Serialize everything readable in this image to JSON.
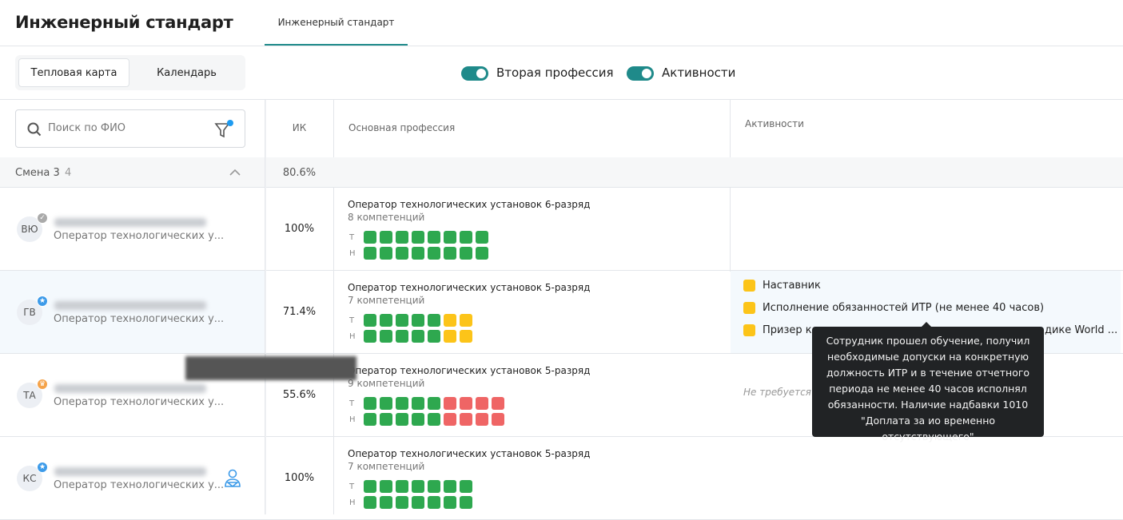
{
  "header": {
    "title": "Инженерный стандарт",
    "tabs": [
      {
        "label": "Инженерный стандарт",
        "active": true
      }
    ]
  },
  "view_switch": {
    "options": [
      "Тепловая карта",
      "Календарь"
    ],
    "selected": "Тепловая карта"
  },
  "toggles": [
    {
      "label": "Вторая профессия",
      "on": true
    },
    {
      "label": "Активности",
      "on": true
    }
  ],
  "search": {
    "placeholder": "Поиск по ФИО",
    "filter_active": true
  },
  "columns": {
    "ik": "ИК",
    "main_profession": "Основная профессия",
    "activities": "Активности"
  },
  "group": {
    "name": "Смена 3",
    "count": "4",
    "ik": "80.6%",
    "expanded": true
  },
  "legend_rows": {
    "t": "Т",
    "n": "Н"
  },
  "colors": {
    "accent": "#1f8a8a",
    "green": "#2ea84f",
    "yellow": "#fcc419",
    "red": "#ef6565",
    "blue_badge": "#3d9be9"
  },
  "rows": [
    {
      "initials": "ВЮ",
      "badge": "check-icon",
      "role": "Оператор технологических у...",
      "ik": "100%",
      "profession": "Оператор технологических установок 6-разряд",
      "competencies": "8 компетенций",
      "t": [
        "g",
        "g",
        "g",
        "g",
        "g",
        "g",
        "g",
        "g"
      ],
      "n": [
        "g",
        "g",
        "g",
        "g",
        "g",
        "g",
        "g",
        "g"
      ],
      "activities": []
    },
    {
      "initials": "ГВ",
      "badge": "star-icon",
      "role": "Оператор технологических у...",
      "ik": "71.4%",
      "profession": "Оператор технологических установок 5-разряд",
      "competencies": "7 компетенций",
      "t": [
        "g",
        "g",
        "g",
        "g",
        "g",
        "y",
        "y"
      ],
      "n": [
        "g",
        "g",
        "g",
        "g",
        "g",
        "y",
        "y"
      ],
      "selected": true,
      "activities": [
        "Наставник",
        "Исполнение обязанностей ИТР (не менее 40 часов)",
        "Призер ко",
        "дике World ..."
      ]
    },
    {
      "initials": "ТА",
      "badge": "crown-icon",
      "role": "Оператор технологических у...",
      "ik": "55.6%",
      "profession": "Оператор технологических установок 5-разряд",
      "competencies": "9 компетенций",
      "t": [
        "g",
        "g",
        "g",
        "g",
        "g",
        "r",
        "r",
        "r",
        "r"
      ],
      "n": [
        "g",
        "g",
        "g",
        "g",
        "g",
        "r",
        "r",
        "r",
        "r"
      ],
      "activity_note": "Не требуется"
    },
    {
      "initials": "КС",
      "badge": "star-icon",
      "role": "Оператор технологических у...",
      "ik": "100%",
      "profession": "Оператор технологических установок 5-разряд",
      "competencies": "7 компетенций",
      "t": [
        "g",
        "g",
        "g",
        "g",
        "g",
        "g",
        "g"
      ],
      "n": [
        "g",
        "g",
        "g",
        "g",
        "g",
        "g",
        "g"
      ],
      "mentor_icon": true
    }
  ],
  "tooltip": {
    "text": "Сотрудник прошел обучение, получил необходимые допуски на конкретную должность ИТР и в течение отчетного периода не менее 40 часов исполнял обязанности. Наличие надбавки 1010",
    "quote": "\"Доплата за ио временно отсутствующего\""
  }
}
